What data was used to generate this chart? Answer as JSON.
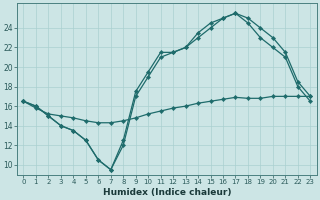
{
  "xlabel": "Humidex (Indice chaleur)",
  "xlim": [
    -0.5,
    23.5
  ],
  "ylim": [
    9.0,
    26.5
  ],
  "xticks": [
    0,
    1,
    2,
    3,
    4,
    5,
    6,
    7,
    8,
    9,
    10,
    11,
    12,
    13,
    14,
    15,
    16,
    17,
    18,
    19,
    20,
    21,
    22,
    23
  ],
  "yticks": [
    10,
    12,
    14,
    16,
    18,
    20,
    22,
    24
  ],
  "bg_color": "#cce5e5",
  "grid_color": "#aad0d0",
  "line_color": "#1e6b6b",
  "line1_x": [
    0,
    1,
    2,
    3,
    4,
    5,
    6,
    7,
    8,
    9,
    10,
    11,
    12,
    13,
    14,
    15,
    16,
    17,
    18,
    19,
    20,
    21,
    22,
    23
  ],
  "line1_y": [
    16.5,
    16.0,
    15.0,
    14.0,
    13.5,
    12.5,
    10.5,
    9.5,
    12.5,
    17.5,
    19.5,
    21.5,
    21.5,
    22.0,
    23.5,
    24.5,
    25.0,
    25.5,
    25.0,
    24.0,
    23.0,
    21.5,
    18.5,
    17.0
  ],
  "line2_x": [
    0,
    1,
    2,
    3,
    4,
    5,
    6,
    7,
    8,
    9,
    10,
    11,
    12,
    13,
    14,
    15,
    16,
    17,
    18,
    19,
    20,
    21,
    22,
    23
  ],
  "line2_y": [
    16.5,
    16.0,
    15.0,
    14.0,
    13.5,
    12.5,
    10.5,
    9.5,
    12.0,
    17.0,
    19.0,
    21.0,
    21.5,
    22.0,
    23.0,
    24.0,
    25.0,
    25.5,
    24.5,
    23.0,
    22.0,
    21.0,
    18.0,
    16.5
  ],
  "line3_x": [
    0,
    1,
    2,
    3,
    4,
    5,
    6,
    7,
    8,
    9,
    10,
    11,
    12,
    13,
    14,
    15,
    16,
    17,
    18,
    19,
    20,
    21,
    22,
    23
  ],
  "line3_y": [
    16.5,
    15.8,
    15.2,
    15.0,
    14.8,
    14.5,
    14.3,
    14.3,
    14.5,
    14.8,
    15.2,
    15.5,
    15.8,
    16.0,
    16.3,
    16.5,
    16.7,
    16.9,
    16.8,
    16.8,
    17.0,
    17.0,
    17.0,
    17.0
  ]
}
